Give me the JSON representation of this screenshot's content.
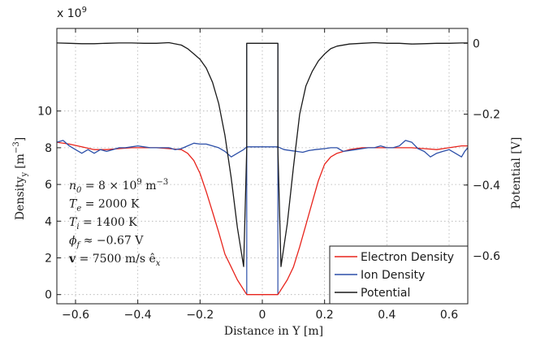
{
  "chart_data": {
    "type": "line",
    "xlabel": "Distance in Y [m]",
    "ylabel_left": "Density",
    "ylabel_left_sub": "y",
    "ylabel_left_unit": "[m",
    "ylabel_left_unit_sup": "−3",
    "ylabel_left_unit_close": "]",
    "ylabel_right": "Potential [V]",
    "left_axis_multiplier": "x 10",
    "left_axis_multiplier_exp": "9",
    "xlim": [
      -0.66,
      0.66
    ],
    "ylim_left": [
      -0.5,
      14.5
    ],
    "ylim_right": [
      -0.735,
      0.042
    ],
    "grid": true,
    "legend_position": "bottom-right",
    "x_ticks": [
      -0.6,
      -0.4,
      -0.2,
      0,
      0.2,
      0.4,
      0.6
    ],
    "x_tick_labels": [
      "−0.6",
      "−0.4",
      "−0.2",
      "0",
      "0.2",
      "0.4",
      "0.6"
    ],
    "y_left_ticks": [
      0,
      2,
      4,
      6,
      8,
      10
    ],
    "y_left_tick_labels": [
      "0",
      "2",
      "4",
      "6",
      "8",
      "10"
    ],
    "y_right_ticks": [
      0,
      -0.2,
      -0.4,
      -0.6
    ],
    "y_right_tick_labels": [
      "0",
      "−0.2",
      "−0.4",
      "−0.6"
    ],
    "series": [
      {
        "name": "Electron Density",
        "axis": "left",
        "color": "#e8241c",
        "points": [
          [
            -0.66,
            8.3
          ],
          [
            -0.62,
            8.2
          ],
          [
            -0.58,
            8.05
          ],
          [
            -0.54,
            7.9
          ],
          [
            -0.5,
            7.9
          ],
          [
            -0.46,
            7.95
          ],
          [
            -0.42,
            8.0
          ],
          [
            -0.38,
            8.0
          ],
          [
            -0.34,
            8.0
          ],
          [
            -0.3,
            7.95
          ],
          [
            -0.26,
            7.9
          ],
          [
            -0.24,
            7.7
          ],
          [
            -0.22,
            7.3
          ],
          [
            -0.2,
            6.6
          ],
          [
            -0.18,
            5.6
          ],
          [
            -0.16,
            4.5
          ],
          [
            -0.14,
            3.4
          ],
          [
            -0.12,
            2.2
          ],
          [
            -0.1,
            1.5
          ],
          [
            -0.08,
            0.8
          ],
          [
            -0.05,
            0.0
          ],
          [
            0.05,
            0.0
          ],
          [
            0.08,
            0.8
          ],
          [
            0.1,
            1.5
          ],
          [
            0.12,
            2.6
          ],
          [
            0.14,
            3.8
          ],
          [
            0.16,
            5.0
          ],
          [
            0.18,
            6.2
          ],
          [
            0.2,
            7.1
          ],
          [
            0.22,
            7.5
          ],
          [
            0.24,
            7.7
          ],
          [
            0.28,
            7.9
          ],
          [
            0.32,
            8.0
          ],
          [
            0.36,
            8.0
          ],
          [
            0.4,
            8.0
          ],
          [
            0.44,
            8.0
          ],
          [
            0.48,
            8.0
          ],
          [
            0.52,
            7.95
          ],
          [
            0.56,
            7.9
          ],
          [
            0.6,
            8.0
          ],
          [
            0.64,
            8.1
          ],
          [
            0.66,
            8.1
          ]
        ]
      },
      {
        "name": "Ion Density",
        "axis": "left",
        "color": "#2c4fa8",
        "points": [
          [
            -0.66,
            8.3
          ],
          [
            -0.64,
            8.4
          ],
          [
            -0.62,
            8.1
          ],
          [
            -0.6,
            7.9
          ],
          [
            -0.58,
            7.7
          ],
          [
            -0.56,
            7.9
          ],
          [
            -0.54,
            7.7
          ],
          [
            -0.52,
            7.9
          ],
          [
            -0.5,
            7.8
          ],
          [
            -0.48,
            7.9
          ],
          [
            -0.46,
            8.0
          ],
          [
            -0.44,
            8.0
          ],
          [
            -0.42,
            8.05
          ],
          [
            -0.4,
            8.1
          ],
          [
            -0.38,
            8.05
          ],
          [
            -0.36,
            8.0
          ],
          [
            -0.34,
            8.0
          ],
          [
            -0.32,
            8.0
          ],
          [
            -0.3,
            8.0
          ],
          [
            -0.28,
            7.9
          ],
          [
            -0.26,
            7.95
          ],
          [
            -0.24,
            8.1
          ],
          [
            -0.22,
            8.25
          ],
          [
            -0.2,
            8.2
          ],
          [
            -0.18,
            8.2
          ],
          [
            -0.16,
            8.1
          ],
          [
            -0.14,
            8.0
          ],
          [
            -0.12,
            7.8
          ],
          [
            -0.1,
            7.5
          ],
          [
            -0.08,
            7.7
          ],
          [
            -0.06,
            7.9
          ],
          [
            -0.05,
            8.05
          ],
          [
            0.05,
            8.05
          ],
          [
            0.07,
            7.9
          ],
          [
            0.09,
            7.85
          ],
          [
            0.11,
            7.8
          ],
          [
            0.13,
            7.75
          ],
          [
            0.15,
            7.85
          ],
          [
            0.17,
            7.9
          ],
          [
            0.2,
            7.95
          ],
          [
            0.22,
            8.0
          ],
          [
            0.24,
            8.0
          ],
          [
            0.25,
            7.9
          ],
          [
            0.26,
            7.8
          ],
          [
            0.28,
            7.85
          ],
          [
            0.3,
            7.9
          ],
          [
            0.32,
            7.95
          ],
          [
            0.34,
            8.0
          ],
          [
            0.36,
            8.0
          ],
          [
            0.38,
            8.1
          ],
          [
            0.4,
            8.0
          ],
          [
            0.42,
            8.0
          ],
          [
            0.44,
            8.1
          ],
          [
            0.46,
            8.4
          ],
          [
            0.48,
            8.3
          ],
          [
            0.5,
            7.95
          ],
          [
            0.52,
            7.8
          ],
          [
            0.54,
            7.5
          ],
          [
            0.56,
            7.7
          ],
          [
            0.58,
            7.8
          ],
          [
            0.6,
            7.9
          ],
          [
            0.62,
            7.7
          ],
          [
            0.64,
            7.5
          ],
          [
            0.65,
            7.8
          ],
          [
            0.66,
            8.0
          ]
        ]
      },
      {
        "name": "Potential",
        "axis": "right",
        "color": "#1a1a1a",
        "points": [
          [
            -0.66,
            0.001
          ],
          [
            -0.62,
            0.0
          ],
          [
            -0.58,
            -0.001
          ],
          [
            -0.54,
            -0.001
          ],
          [
            -0.5,
            0.0
          ],
          [
            -0.46,
            0.001
          ],
          [
            -0.42,
            0.001
          ],
          [
            -0.38,
            0.0
          ],
          [
            -0.34,
            0.0
          ],
          [
            -0.3,
            0.002
          ],
          [
            -0.26,
            -0.005
          ],
          [
            -0.24,
            -0.015
          ],
          [
            -0.22,
            -0.03
          ],
          [
            -0.2,
            -0.045
          ],
          [
            -0.18,
            -0.07
          ],
          [
            -0.16,
            -0.11
          ],
          [
            -0.14,
            -0.17
          ],
          [
            -0.12,
            -0.26
          ],
          [
            -0.1,
            -0.38
          ],
          [
            -0.08,
            -0.52
          ],
          [
            -0.06,
            -0.63
          ],
          [
            -0.05,
            -0.3
          ],
          [
            -0.05,
            0.0
          ],
          [
            0.05,
            0.0
          ],
          [
            0.05,
            -0.3
          ],
          [
            0.06,
            -0.63
          ],
          [
            0.08,
            -0.51
          ],
          [
            0.1,
            -0.35
          ],
          [
            0.12,
            -0.2
          ],
          [
            0.14,
            -0.12
          ],
          [
            0.16,
            -0.08
          ],
          [
            0.18,
            -0.05
          ],
          [
            0.2,
            -0.03
          ],
          [
            0.22,
            -0.015
          ],
          [
            0.24,
            -0.008
          ],
          [
            0.28,
            -0.002
          ],
          [
            0.32,
            0.0
          ],
          [
            0.36,
            0.002
          ],
          [
            0.4,
            0.0
          ],
          [
            0.44,
            0.0
          ],
          [
            0.48,
            -0.002
          ],
          [
            0.52,
            -0.001
          ],
          [
            0.56,
            0.0
          ],
          [
            0.6,
            0.0
          ],
          [
            0.64,
            0.001
          ],
          [
            0.66,
            0.001
          ]
        ]
      }
    ],
    "probe_box": {
      "color": "#2c4fa8",
      "x": [
        -0.05,
        0.05
      ]
    },
    "annotations": [
      {
        "base": "n",
        "sub": "0",
        "rest": " = 8 × 10",
        "sup": "9",
        "tail": " m",
        "tail_sup": "−3"
      },
      {
        "base": "T",
        "sub": "e",
        "rest": " = 2000 K",
        "sup": "",
        "tail": "",
        "tail_sup": ""
      },
      {
        "base": "T",
        "sub": "i",
        "rest": " = 1400 K",
        "sup": "",
        "tail": "",
        "tail_sup": ""
      },
      {
        "base": "ϕ",
        "sub": "f",
        "rest": " ≈ −0.67 V",
        "sup": "",
        "tail": "",
        "tail_sup": ""
      },
      {
        "base": "v",
        "sub": "",
        "rest": " = 7500 m/s ê",
        "sup": "",
        "tail": "",
        "tail_sup": "",
        "tail_sub": "x"
      }
    ]
  }
}
